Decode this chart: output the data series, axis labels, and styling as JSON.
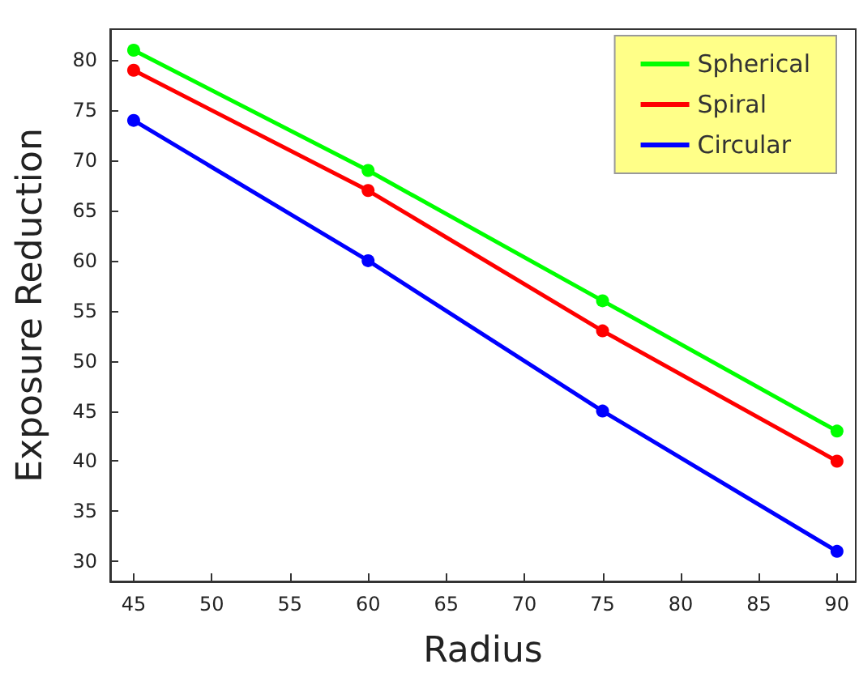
{
  "chart_data": {
    "type": "line",
    "xlabel": "Radius",
    "ylabel": "Exposure Reduction",
    "x": [
      45,
      60,
      75,
      90
    ],
    "series": [
      {
        "name": "Spherical",
        "color": "#00ff00",
        "values": [
          81,
          69,
          56,
          43
        ]
      },
      {
        "name": "Spiral",
        "color": "#ff0000",
        "values": [
          79,
          67,
          53,
          40
        ]
      },
      {
        "name": "Circular",
        "color": "#0000ff",
        "values": [
          74,
          60,
          45,
          31
        ]
      }
    ],
    "xlim": [
      43.5,
      91.2
    ],
    "xticks": [
      45,
      50,
      55,
      60,
      65,
      70,
      75,
      80,
      85,
      90
    ],
    "ylim": [
      28,
      83.1
    ],
    "yticks": [
      30,
      35,
      40,
      45,
      50,
      55,
      60,
      65,
      70,
      75,
      80
    ],
    "grid": false,
    "legend": "top right",
    "marker": "circle",
    "line_style": "solid"
  }
}
